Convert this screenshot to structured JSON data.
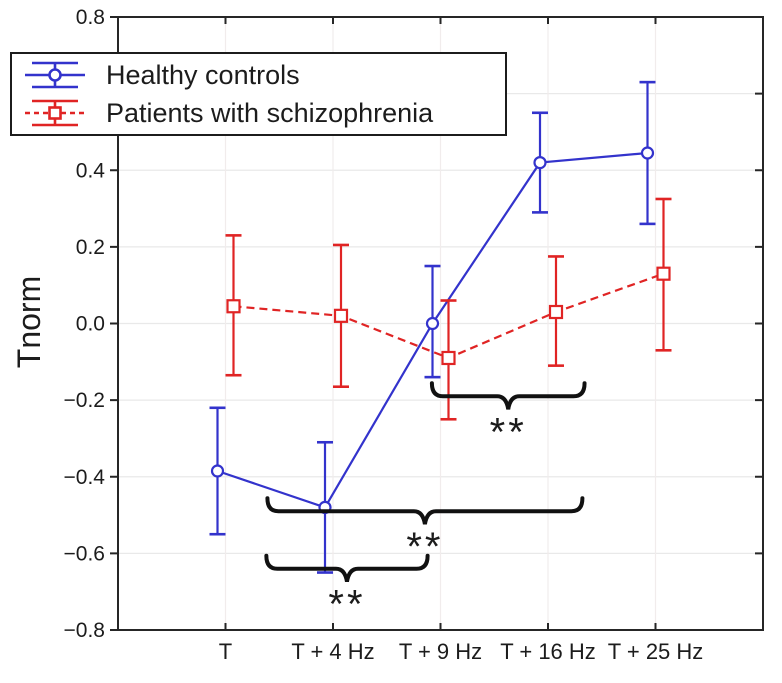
{
  "figure": {
    "background": "#ffffff",
    "text_color": "#1c1c1c"
  },
  "chart_data": {
    "type": "line",
    "title": "",
    "xlabel": "",
    "ylabel": "Tnorm",
    "ylim": [
      -0.8,
      0.8
    ],
    "yticks": [
      0.8,
      0.6,
      0.4,
      0.2,
      0.0,
      -0.2,
      -0.4,
      -0.6,
      -0.8
    ],
    "ytick_labels": [
      "0.8",
      "0.6",
      "0.4",
      "0.2",
      "0.0",
      "−0.2",
      "−0.4",
      "−0.6",
      "−0.8"
    ],
    "categories": [
      "T",
      "T + 4 Hz",
      "T + 9 Hz",
      "T + 16 Hz",
      "T + 25 Hz"
    ],
    "grid": true,
    "legend_position": "top-left",
    "series": [
      {
        "name": "Healthy controls",
        "color": "#3333cc",
        "line_style": "solid",
        "marker": "circle",
        "values": [
          -0.385,
          -0.48,
          0.0,
          0.42,
          0.445
        ],
        "ci_low": [
          -0.55,
          -0.65,
          -0.14,
          0.29,
          0.26
        ],
        "ci_high": [
          -0.22,
          -0.31,
          0.15,
          0.55,
          0.63
        ]
      },
      {
        "name": "Patients with schizophrenia",
        "color": "#e02424",
        "line_style": "dashed",
        "marker": "square",
        "values": [
          0.045,
          0.02,
          -0.09,
          0.03,
          0.13
        ],
        "ci_low": [
          -0.135,
          -0.165,
          -0.25,
          -0.11,
          -0.07
        ],
        "ci_high": [
          0.23,
          0.205,
          0.06,
          0.175,
          0.325
        ]
      }
    ],
    "annotations": [
      {
        "label": "**",
        "x1": 1.92,
        "x2": 3.34,
        "y": -0.19
      },
      {
        "label": "**",
        "x1": 0.39,
        "x2": 3.32,
        "y": -0.49
      },
      {
        "label": "**",
        "x1": 0.38,
        "x2": 1.88,
        "y": -0.64
      }
    ],
    "annotation_color": "#111111"
  }
}
